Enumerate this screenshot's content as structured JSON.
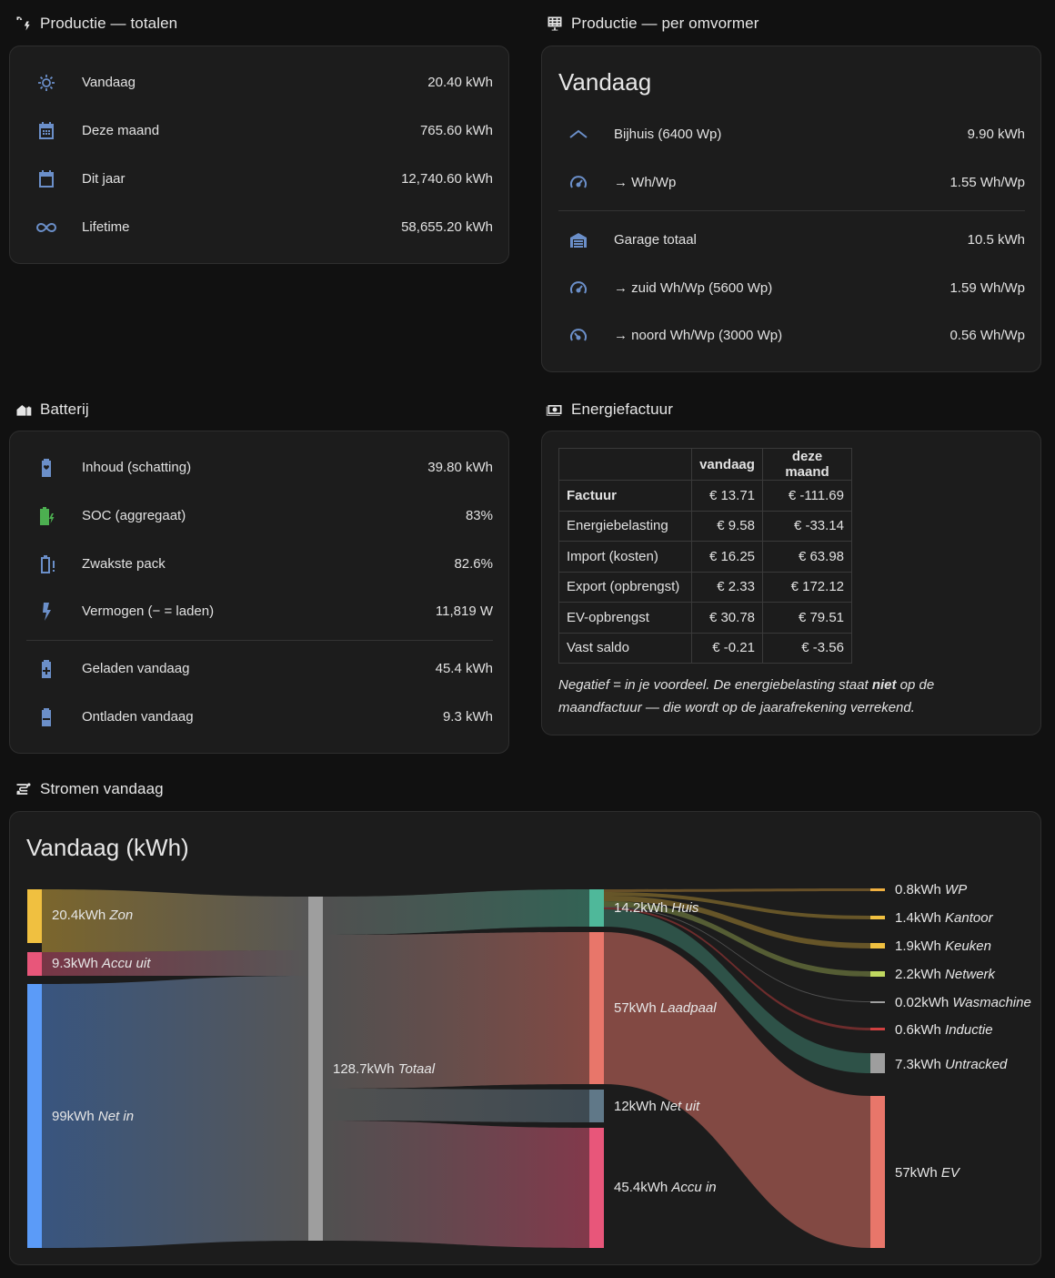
{
  "productie_totalen": {
    "title": "Productie — totalen",
    "rows": [
      {
        "label": "Vandaag",
        "value": "20.40 kWh",
        "icon": "solar-power-icon"
      },
      {
        "label": "Deze maand",
        "value": "765.60 kWh",
        "icon": "calendar-month-icon"
      },
      {
        "label": "Dit jaar",
        "value": "12,740.60 kWh",
        "icon": "calendar-icon"
      },
      {
        "label": "Lifetime",
        "value": "58,655.20 kWh",
        "icon": "infinity-icon"
      }
    ]
  },
  "productie_omvormer": {
    "title": "Productie — per omvormer",
    "heading": "Vandaag",
    "rows": [
      {
        "label": "Bijhuis (6400 Wp)",
        "value": "9.90 kWh",
        "icon": "roof-icon"
      },
      {
        "label": "→ Wh/Wp",
        "value": "1.55 Wh/Wp",
        "icon": "speedometer-icon"
      },
      {
        "label": "Garage totaal",
        "value": "10.5 kWh",
        "icon": "garage-icon"
      },
      {
        "label": "→ zuid Wh/Wp (5600 Wp)",
        "value": "1.59 Wh/Wp",
        "icon": "speedometer-icon"
      },
      {
        "label": "→ noord Wh/Wp (3000 Wp)",
        "value": "0.56 Wh/Wp",
        "icon": "speedometer-slow-icon"
      }
    ]
  },
  "batterij": {
    "title": "Batterij",
    "rows": [
      {
        "label": "Inhoud (schatting)",
        "value": "39.80 kWh",
        "icon": "battery-heart-icon"
      },
      {
        "label": "SOC (aggregaat)",
        "value": "83%",
        "icon": "battery-charging-icon"
      },
      {
        "label": "Zwakste pack",
        "value": "82.6%",
        "icon": "battery-alert-icon"
      },
      {
        "label": "Vermogen (− = laden)",
        "value": "11,819 W",
        "icon": "flash-icon"
      },
      {
        "label": "Geladen vandaag",
        "value": "45.4 kWh",
        "icon": "battery-plus-icon"
      },
      {
        "label": "Ontladen vandaag",
        "value": "9.3 kWh",
        "icon": "battery-minus-icon"
      }
    ]
  },
  "energiefactuur": {
    "title": "Energiefactuur",
    "columns": [
      "",
      "vandaag",
      "deze maand"
    ],
    "rows": [
      [
        "Factuur",
        "€ 13.71",
        "€ -111.69"
      ],
      [
        "Energiebelasting",
        "€ 9.58",
        "€ -33.14"
      ],
      [
        "Import (kosten)",
        "€ 16.25",
        "€ 63.98"
      ],
      [
        "Export (opbrengst)",
        "€ 2.33",
        "€ 172.12"
      ],
      [
        "EV-opbrengst",
        "€ 30.78",
        "€ 79.51"
      ],
      [
        "Vast saldo",
        "€ -0.21",
        "€ -3.56"
      ]
    ],
    "note_part1": "Negatief = in je voordeel. De energiebelasting staat ",
    "note_bold": "niet",
    "note_part2": " op de maandfactuur — die wordt op de jaarafrekening verrekend."
  },
  "stromen": {
    "title": "Stromen vandaag",
    "heading": "Vandaag (kWh)",
    "sources": [
      {
        "value": "20.4kWh",
        "name": "Zon",
        "color": "#f0c040"
      },
      {
        "value": "9.3kWh",
        "name": "Accu uit",
        "color": "#e8567a"
      },
      {
        "value": "99kWh",
        "name": "Net in",
        "color": "#5b9bf8"
      }
    ],
    "total": {
      "value": "128.7kWh",
      "name": "Totaal",
      "color": "#9e9e9e"
    },
    "middle": [
      {
        "value": "14.2kWh",
        "name": "Huis",
        "color": "#4fb89a"
      },
      {
        "value": "57kWh",
        "name": "Laadpaal",
        "color": "#e8766a"
      },
      {
        "value": "12kWh",
        "name": "Net uit",
        "color": "#607888"
      },
      {
        "value": "45.4kWh",
        "name": "Accu in",
        "color": "#e8567a"
      }
    ],
    "consumers": [
      {
        "value": "0.8kWh",
        "name": "WP",
        "color": "#f0b040"
      },
      {
        "value": "1.4kWh",
        "name": "Kantoor",
        "color": "#f0c040"
      },
      {
        "value": "1.9kWh",
        "name": "Keuken",
        "color": "#f0c040"
      },
      {
        "value": "2.2kWh",
        "name": "Netwerk",
        "color": "#c0d860"
      },
      {
        "value": "0.02kWh",
        "name": "Wasmachine",
        "color": "#a0a0a0"
      },
      {
        "value": "0.6kWh",
        "name": "Inductie",
        "color": "#d04040"
      },
      {
        "value": "7.3kWh",
        "name": "Untracked",
        "color": "#9e9e9e"
      },
      {
        "value": "57kWh",
        "name": "EV",
        "color": "#e8766a"
      }
    ]
  }
}
